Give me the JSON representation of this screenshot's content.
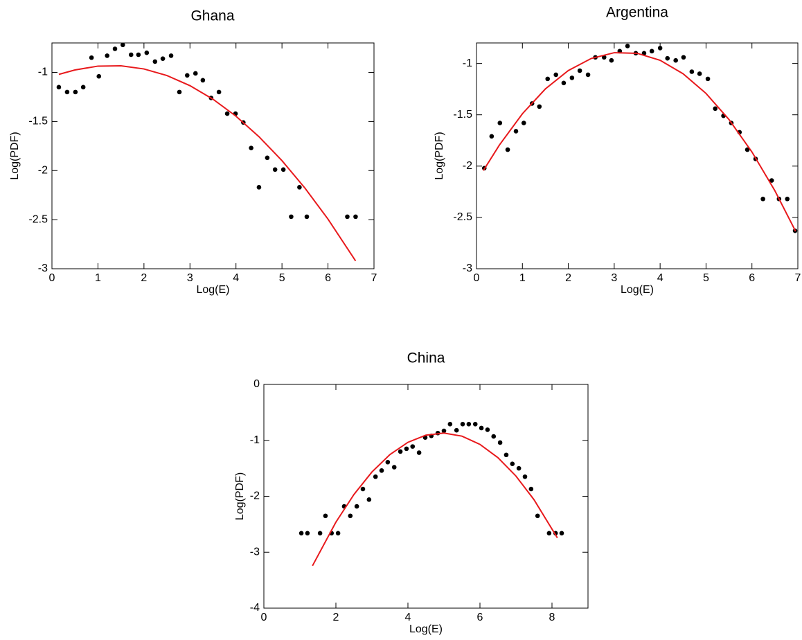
{
  "chart_data": [
    {
      "type": "scatter",
      "title": "Ghana",
      "x_label": "Log(E)",
      "y_label": "Log(PDF)",
      "xlim": [
        0,
        7
      ],
      "ylim": [
        -3,
        -0.7
      ],
      "xticks": [
        0,
        1,
        2,
        3,
        4,
        5,
        6,
        7
      ],
      "yticks": [
        -3,
        -2.5,
        -2,
        -1.5,
        -1
      ],
      "series": [
        {
          "type": "scatter",
          "color": "#000000",
          "x": [
            0.15,
            0.33,
            0.51,
            0.68,
            0.86,
            1.02,
            1.2,
            1.37,
            1.54,
            1.72,
            1.88,
            2.06,
            2.24,
            2.41,
            2.59,
            2.77,
            2.94,
            3.12,
            3.28,
            3.46,
            3.63,
            3.81,
            3.99,
            4.16,
            4.33,
            4.5,
            4.68,
            4.85,
            5.03,
            5.2,
            5.38,
            5.54,
            6.42,
            6.6
          ],
          "values": [
            -1.15,
            -1.2,
            -1.2,
            -1.15,
            -0.85,
            -1.04,
            -0.83,
            -0.76,
            -0.72,
            -0.82,
            -0.82,
            -0.8,
            -0.89,
            -0.86,
            -0.83,
            -1.2,
            -1.03,
            -1.01,
            -1.08,
            -1.26,
            -1.2,
            -1.42,
            -1.42,
            -1.51,
            -1.77,
            -2.17,
            -1.87,
            -1.99,
            -1.99,
            -2.47,
            -2.17,
            -2.47,
            -2.47,
            -2.47
          ]
        },
        {
          "type": "line",
          "color": "#e8191c",
          "x": [
            0.15,
            0.5,
            1,
            1.5,
            2,
            2.5,
            3,
            3.5,
            4,
            4.5,
            5,
            5.5,
            6,
            6.6
          ],
          "values": [
            -1.02,
            -0.975,
            -0.936,
            -0.933,
            -0.965,
            -1.032,
            -1.135,
            -1.273,
            -1.446,
            -1.655,
            -1.899,
            -2.179,
            -2.494,
            -2.92
          ]
        }
      ]
    },
    {
      "type": "scatter",
      "title": "Argentina",
      "x_label": "Log(E)",
      "y_label": "Log(PDF)",
      "xlim": [
        0,
        7
      ],
      "ylim": [
        -3,
        -0.8
      ],
      "xticks": [
        0,
        1,
        2,
        3,
        4,
        5,
        6,
        7
      ],
      "yticks": [
        -3,
        -2.5,
        -2,
        -1.5,
        -1
      ],
      "series": [
        {
          "type": "scatter",
          "color": "#000000",
          "x": [
            0.17,
            0.33,
            0.51,
            0.68,
            0.86,
            1.03,
            1.21,
            1.37,
            1.55,
            1.73,
            1.9,
            2.08,
            2.25,
            2.43,
            2.59,
            2.78,
            2.94,
            3.12,
            3.29,
            3.47,
            3.65,
            3.82,
            4.0,
            4.16,
            4.34,
            4.51,
            4.69,
            4.86,
            5.04,
            5.2,
            5.38,
            5.55,
            5.73,
            5.9,
            6.08,
            6.24,
            6.43,
            6.59,
            6.77,
            6.94
          ],
          "values": [
            -2.02,
            -1.71,
            -1.58,
            -1.84,
            -1.66,
            -1.58,
            -1.39,
            -1.42,
            -1.15,
            -1.11,
            -1.19,
            -1.14,
            -1.07,
            -1.11,
            -0.94,
            -0.94,
            -0.97,
            -0.88,
            -0.83,
            -0.9,
            -0.9,
            -0.88,
            -0.85,
            -0.95,
            -0.97,
            -0.94,
            -1.08,
            -1.1,
            -1.15,
            -1.44,
            -1.51,
            -1.58,
            -1.67,
            -1.84,
            -1.93,
            -2.32,
            -2.14,
            -2.32,
            -2.32,
            -2.63
          ]
        },
        {
          "type": "line",
          "color": "#e8191c",
          "x": [
            0.15,
            0.5,
            1,
            1.5,
            2,
            2.5,
            3,
            3.5,
            4,
            4.5,
            5,
            5.5,
            6,
            6.5,
            6.95
          ],
          "values": [
            -2.043,
            -1.794,
            -1.49,
            -1.248,
            -1.069,
            -0.951,
            -0.895,
            -0.901,
            -0.969,
            -1.1,
            -1.292,
            -1.546,
            -1.862,
            -2.24,
            -2.634
          ]
        }
      ]
    },
    {
      "type": "scatter",
      "title": "China",
      "x_label": "Log(E)",
      "y_label": "Log(PDF)",
      "xlim": [
        0,
        9
      ],
      "ylim": [
        -4,
        0
      ],
      "xticks": [
        0,
        2,
        4,
        6,
        8
      ],
      "yticks": [
        -4,
        -3,
        -2,
        -1,
        0
      ],
      "series": [
        {
          "type": "scatter",
          "color": "#000000",
          "x": [
            1.04,
            1.21,
            1.56,
            1.71,
            1.88,
            2.06,
            2.23,
            2.4,
            2.58,
            2.75,
            2.92,
            3.1,
            3.27,
            3.44,
            3.62,
            3.79,
            3.96,
            4.13,
            4.31,
            4.48,
            4.65,
            4.83,
            5.0,
            5.17,
            5.35,
            5.52,
            5.69,
            5.87,
            6.04,
            6.21,
            6.38,
            6.56,
            6.73,
            6.9,
            7.08,
            7.25,
            7.42,
            7.6,
            7.92,
            8.1,
            8.27
          ],
          "values": [
            -2.66,
            -2.66,
            -2.66,
            -2.35,
            -2.66,
            -2.66,
            -2.18,
            -2.35,
            -2.18,
            -1.87,
            -2.06,
            -1.65,
            -1.54,
            -1.39,
            -1.48,
            -1.2,
            -1.15,
            -1.11,
            -1.22,
            -0.95,
            -0.92,
            -0.87,
            -0.83,
            -0.71,
            -0.82,
            -0.71,
            -0.71,
            -0.71,
            -0.78,
            -0.81,
            -0.93,
            -1.04,
            -1.26,
            -1.42,
            -1.5,
            -1.65,
            -1.87,
            -2.35,
            -2.66,
            -2.66,
            -2.66
          ]
        },
        {
          "type": "line",
          "color": "#e8191c",
          "x": [
            1.35,
            2,
            2.5,
            3,
            3.5,
            4,
            4.5,
            5,
            5.5,
            6,
            6.5,
            7,
            7.5,
            8.15
          ],
          "values": [
            -3.242,
            -2.463,
            -1.969,
            -1.566,
            -1.255,
            -1.035,
            -0.907,
            -0.87,
            -0.925,
            -1.072,
            -1.31,
            -1.639,
            -2.06,
            -2.744
          ]
        }
      ]
    }
  ]
}
